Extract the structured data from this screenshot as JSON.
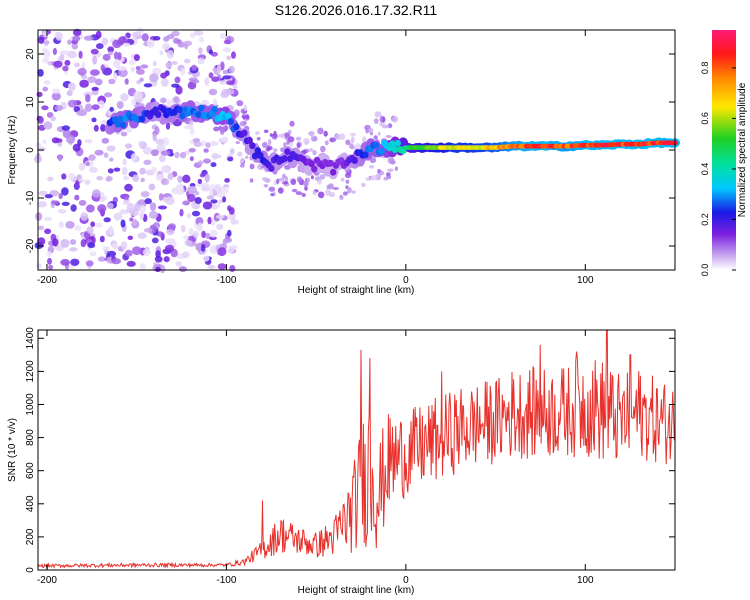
{
  "title": "S126.2026.016.17.32.R11",
  "colors": {
    "snr_line": "#e8312c",
    "cmap_low": "#ffffff",
    "axis": "#000000"
  },
  "chart_data": [
    {
      "type": "heatmap",
      "name": "spectrogram",
      "title": "S126.2026.016.17.32.R11",
      "xlabel": "Height of straight line (km)",
      "ylabel": "Frequency (Hz)",
      "xlim": [
        -205,
        150
      ],
      "ylim": [
        -25,
        25
      ],
      "xticks": [
        -200,
        -100,
        0,
        100
      ],
      "xtick_labels": [
        "-200",
        "-100",
        "0",
        "100"
      ],
      "yticks": [
        -20,
        -10,
        0,
        10,
        20
      ],
      "ytick_labels": [
        "-20",
        "-10",
        "0",
        "10",
        "20"
      ],
      "colorbar": {
        "label": "Normalized spectral amplitude",
        "range": [
          0,
          0.95
        ],
        "ticks": [
          0.0,
          0.2,
          0.4,
          0.6,
          0.8
        ],
        "tick_labels": [
          "0.0",
          "0.2",
          "0.4",
          "0.6",
          "0.8"
        ]
      },
      "ridge": {
        "description": "dominant frequency track (Hz) vs height (km)",
        "x": [
          -165,
          -158,
          -150,
          -140,
          -130,
          -120,
          -110,
          -100,
          -95,
          -90,
          -85,
          -80,
          -75,
          -70,
          -65,
          -60,
          -55,
          -50,
          -45,
          -40,
          -35,
          -30,
          -25,
          -20,
          -15,
          -10,
          -5,
          0,
          10,
          20,
          30,
          40,
          50,
          60,
          70,
          80,
          90,
          100,
          110,
          120,
          130,
          140,
          150
        ],
        "y": [
          5,
          6,
          7,
          8,
          8,
          8,
          8,
          7,
          5,
          3,
          0,
          -2,
          -3,
          -2,
          -1,
          -2,
          -3,
          -3,
          -3,
          -4,
          -3,
          -2,
          -1,
          0,
          0.5,
          0.5,
          0.5,
          0.5,
          0.5,
          0.5,
          0.5,
          0.5,
          0.5,
          0.8,
          0.8,
          0.8,
          0.8,
          1,
          1,
          1.2,
          1.2,
          1.5,
          1.5
        ],
        "amplitude": [
          0.25,
          0.3,
          0.3,
          0.2,
          0.25,
          0.3,
          0.3,
          0.35,
          0.25,
          0.2,
          0.2,
          0.25,
          0.2,
          0.2,
          0.2,
          0.2,
          0.15,
          0.15,
          0.15,
          0.15,
          0.15,
          0.2,
          0.25,
          0.3,
          0.3,
          0.35,
          0.4,
          0.5,
          0.6,
          0.65,
          0.7,
          0.7,
          0.75,
          0.85,
          0.9,
          0.9,
          0.85,
          0.9,
          0.9,
          0.9,
          0.9,
          0.9,
          0.9
        ]
      },
      "noise": {
        "x_range": [
          -205,
          -95
        ],
        "y_range": [
          -25,
          25
        ],
        "amplitude_range": [
          0.02,
          0.2
        ]
      }
    },
    {
      "type": "line",
      "name": "snr",
      "xlabel": "Height of straight line (km)",
      "ylabel": "SNR (10 * v/v)",
      "xlim": [
        -205,
        150
      ],
      "ylim": [
        0,
        1450
      ],
      "xticks": [
        -200,
        -100,
        0,
        100
      ],
      "xtick_labels": [
        "-200",
        "-100",
        "0",
        "100"
      ],
      "yticks": [
        0,
        200,
        400,
        600,
        800,
        1000,
        1200,
        1400
      ],
      "ytick_labels": [
        "0",
        "200",
        "400",
        "600",
        "800",
        "1000",
        "1200",
        "1400"
      ],
      "envelope": {
        "x": [
          -205,
          -150,
          -100,
          -90,
          -80,
          -70,
          -60,
          -50,
          -40,
          -30,
          -25,
          -20,
          -15,
          -10,
          0,
          10,
          20,
          30,
          40,
          50,
          60,
          70,
          80,
          90,
          100,
          110,
          120,
          130,
          140,
          150
        ],
        "y": [
          25,
          30,
          30,
          50,
          120,
          220,
          180,
          150,
          200,
          350,
          500,
          650,
          450,
          650,
          700,
          750,
          800,
          850,
          880,
          900,
          950,
          950,
          950,
          960,
          1000,
          960,
          900,
          950,
          900,
          880
        ],
        "spread": [
          10,
          12,
          10,
          20,
          60,
          120,
          90,
          80,
          120,
          250,
          380,
          500,
          350,
          300,
          260,
          260,
          260,
          260,
          260,
          260,
          280,
          280,
          280,
          280,
          320,
          320,
          280,
          280,
          260,
          250
        ]
      },
      "peaks": [
        [
          -80,
          420
        ],
        [
          -25,
          1330
        ],
        [
          -20,
          1280
        ],
        [
          20,
          1200
        ],
        [
          75,
          1360
        ],
        [
          95,
          1320
        ],
        [
          112,
          1450
        ],
        [
          125,
          1300
        ]
      ]
    }
  ]
}
